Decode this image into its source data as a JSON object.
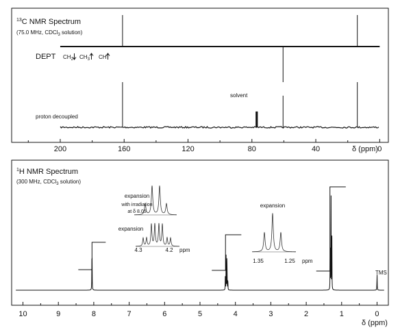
{
  "chart_data": [
    {
      "type": "line",
      "title_sup": "13",
      "title": "C NMR Spectrum",
      "subtitle_pre": "(75.0 MHz, CDCl",
      "subtitle_sub": "3",
      "subtitle_post": " solution)",
      "xlabel": "δ (ppm)",
      "xlim": [
        230,
        -5
      ],
      "xticks": [
        200,
        160,
        120,
        80,
        40,
        0
      ],
      "dept": {
        "label": "DEPT",
        "legend": [
          {
            "text": "CH",
            "sub": "2",
            "direction": "down"
          },
          {
            "text": "CH",
            "sub": "3",
            "direction": "up"
          },
          {
            "text": "CH",
            "sub": "",
            "direction": "up"
          }
        ],
        "peaks": [
          {
            "ppm": 161.0,
            "direction": "up"
          },
          {
            "ppm": 60.5,
            "direction": "down"
          },
          {
            "ppm": 14.0,
            "direction": "up"
          }
        ]
      },
      "decoupled": {
        "label": "proton decoupled",
        "peaks": [
          {
            "ppm": 161.0,
            "height": 1.0
          },
          {
            "ppm": 77.0,
            "height": 0.35,
            "solvent": true
          },
          {
            "ppm": 60.5,
            "height": 0.7
          },
          {
            "ppm": 14.0,
            "height": 1.0
          }
        ],
        "annotation": "solvent"
      }
    },
    {
      "type": "line",
      "title_sup": "1",
      "title": "H NMR Spectrum",
      "subtitle_pre": "(300 MHz, CDCl",
      "subtitle_sub": "3",
      "subtitle_post": " solution)",
      "xlabel": "δ (ppm)",
      "xlim": [
        10.3,
        -0.3
      ],
      "xticks": [
        10,
        9,
        8,
        7,
        6,
        5,
        4,
        3,
        2,
        1,
        0
      ],
      "signals": [
        {
          "ppm": 8.05,
          "multiplicity": "singlet",
          "integral": 1
        },
        {
          "ppm": 4.25,
          "multiplicity": "quartet",
          "integral": 2
        },
        {
          "ppm": 1.3,
          "multiplicity": "triplet",
          "integral": 3
        },
        {
          "ppm": 0.0,
          "multiplicity": "singlet",
          "label": "TMS"
        }
      ],
      "tms_label": "TMS",
      "insets": [
        {
          "label": "expansion",
          "sublabel_1": "with irradiation",
          "sublabel_2": "at δ 8.05",
          "pattern": "quartet"
        },
        {
          "label": "expansion",
          "pattern": "doublet of quartets",
          "ticks": [
            "4.3",
            "4.2"
          ],
          "unit": "ppm"
        },
        {
          "label": "expansion",
          "pattern": "triplet",
          "ticks": [
            "1.35",
            "1.25"
          ],
          "unit": "ppm"
        }
      ]
    }
  ]
}
